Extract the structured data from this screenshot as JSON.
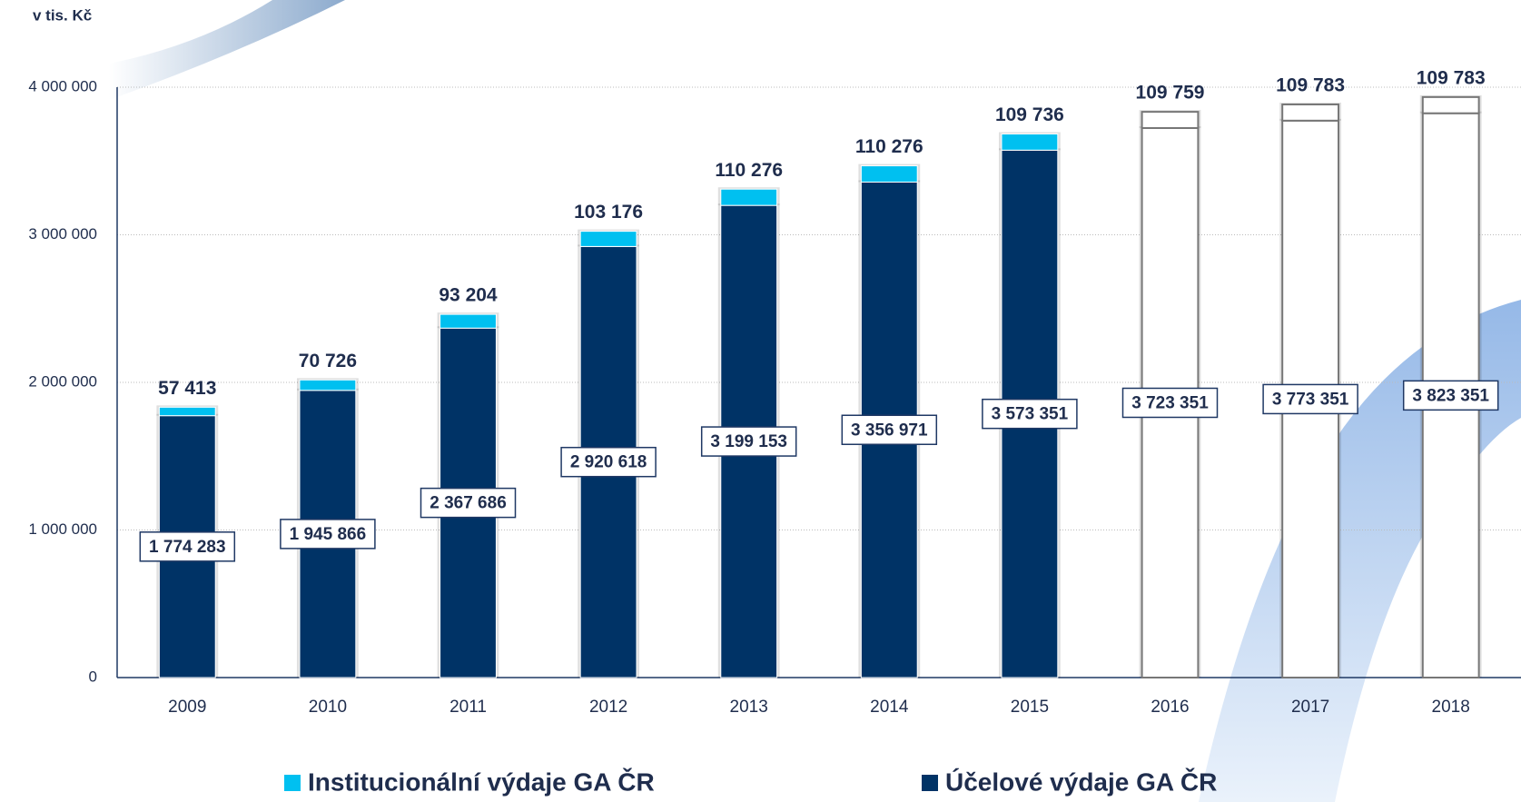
{
  "chart_data": {
    "type": "bar",
    "stacked": true,
    "y_axis_label": "v tis. Kč",
    "categories": [
      "2009",
      "2010",
      "2011",
      "2012",
      "2013",
      "2014",
      "2015",
      "2016",
      "2017",
      "2018"
    ],
    "series": [
      {
        "name": "Institucionální výdaje GA ČR",
        "color": "#00c0f0",
        "colors": [
          "#00c0f0",
          "#00c0f0",
          "#00c0f0",
          "#00c0f0",
          "#00c0f0",
          "#00c0f0",
          "#00c0f0",
          "#ffffff",
          "#ffffff",
          "#ffffff"
        ],
        "values": [
          57413,
          70726,
          93204,
          103176,
          110276,
          110276,
          109736,
          109759,
          109783,
          109783
        ],
        "value_labels": [
          "57 413",
          "70 726",
          "93 204",
          "103 176",
          "110 276",
          "110 276",
          "109 736",
          "109 759",
          "109 783",
          "109 783"
        ]
      },
      {
        "name": "Účelové výdaje GA ČR",
        "color": "#003366",
        "colors": [
          "#003366",
          "#003366",
          "#003366",
          "#003366",
          "#003366",
          "#003366",
          "#003366",
          "#ffffff",
          "#ffffff",
          "#ffffff"
        ],
        "values": [
          1774283,
          1945866,
          2367686,
          2920618,
          3199153,
          3356971,
          3573351,
          3723351,
          3773351,
          3823351
        ],
        "value_labels": [
          "1 774 283",
          "1 945 866",
          "2 367 686",
          "2 920 618",
          "3 199 153",
          "3 356 971",
          "3 573 351",
          "3 723 351",
          "3 773 351",
          "3 823 351"
        ]
      }
    ],
    "ylim": [
      0,
      4000000
    ],
    "yticks": [
      0,
      {
        "value": 1000000,
        "label": "1 000 000"
      },
      {
        "value": 2000000,
        "label": "2 000 000"
      },
      {
        "value": 3000000,
        "label": "3 000 000"
      },
      {
        "value": 4000000,
        "label": "4 000 000"
      }
    ],
    "grid": true,
    "legend": "bottom"
  }
}
